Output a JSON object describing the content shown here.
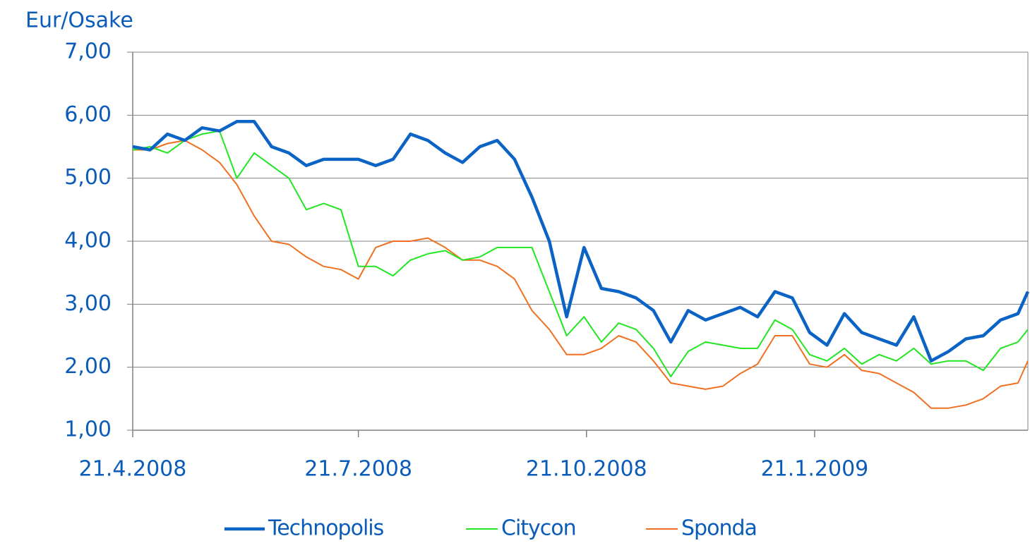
{
  "chart_data": {
    "type": "line",
    "y_axis_label": "Eur/Osake",
    "x": [
      "2008-04-21",
      "2008-04-28",
      "2008-05-05",
      "2008-05-12",
      "2008-05-19",
      "2008-05-26",
      "2008-06-02",
      "2008-06-09",
      "2008-06-16",
      "2008-06-23",
      "2008-06-30",
      "2008-07-07",
      "2008-07-14",
      "2008-07-21",
      "2008-07-28",
      "2008-08-04",
      "2008-08-11",
      "2008-08-18",
      "2008-08-25",
      "2008-09-01",
      "2008-09-08",
      "2008-09-15",
      "2008-09-22",
      "2008-09-29",
      "2008-10-06",
      "2008-10-13",
      "2008-10-20",
      "2008-10-27",
      "2008-11-03",
      "2008-11-10",
      "2008-11-17",
      "2008-11-24",
      "2008-12-01",
      "2008-12-08",
      "2008-12-15",
      "2008-12-22",
      "2008-12-29",
      "2009-01-05",
      "2009-01-12",
      "2009-01-19",
      "2009-01-26",
      "2009-02-02",
      "2009-02-09",
      "2009-02-16",
      "2009-02-23",
      "2009-03-02",
      "2009-03-09",
      "2009-03-16",
      "2009-03-23",
      "2009-03-30",
      "2009-04-06",
      "2009-04-13",
      "2009-04-17"
    ],
    "series": [
      {
        "name": "Technopolis",
        "color": "#0b63c5",
        "values": [
          5.5,
          5.45,
          5.7,
          5.6,
          5.8,
          5.75,
          5.9,
          5.9,
          5.5,
          5.4,
          5.2,
          5.3,
          5.3,
          5.3,
          5.2,
          5.3,
          5.7,
          5.6,
          5.4,
          5.25,
          5.5,
          5.6,
          5.3,
          4.7,
          4.0,
          2.8,
          3.9,
          3.25,
          3.2,
          3.1,
          2.9,
          2.4,
          2.9,
          2.75,
          2.85,
          2.95,
          2.8,
          3.2,
          3.1,
          2.55,
          2.35,
          2.85,
          2.55,
          2.45,
          2.35,
          2.8,
          2.1,
          2.25,
          2.45,
          2.5,
          2.75,
          2.85,
          3.2
        ]
      },
      {
        "name": "Citycon",
        "color": "#22e622",
        "values": [
          5.45,
          5.5,
          5.4,
          5.6,
          5.7,
          5.75,
          5.0,
          5.4,
          5.2,
          5.0,
          4.5,
          4.6,
          4.5,
          3.6,
          3.6,
          3.45,
          3.7,
          3.8,
          3.85,
          3.7,
          3.75,
          3.9,
          3.9,
          3.9,
          3.2,
          2.5,
          2.8,
          2.4,
          2.7,
          2.6,
          2.3,
          1.85,
          2.25,
          2.4,
          2.35,
          2.3,
          2.3,
          2.75,
          2.6,
          2.2,
          2.1,
          2.3,
          2.05,
          2.2,
          2.1,
          2.3,
          2.05,
          2.1,
          2.1,
          1.95,
          2.3,
          2.4,
          2.6
        ]
      },
      {
        "name": "Sponda",
        "color": "#f07020",
        "values": [
          5.45,
          5.45,
          5.55,
          5.6,
          5.45,
          5.25,
          4.9,
          4.4,
          4.0,
          3.95,
          3.75,
          3.6,
          3.55,
          3.4,
          3.9,
          4.0,
          4.0,
          4.05,
          3.9,
          3.7,
          3.7,
          3.6,
          3.4,
          2.9,
          2.6,
          2.2,
          2.2,
          2.3,
          2.5,
          2.4,
          2.1,
          1.75,
          1.7,
          1.65,
          1.7,
          1.9,
          2.05,
          2.5,
          2.5,
          2.05,
          2.0,
          2.2,
          1.95,
          1.9,
          1.75,
          1.6,
          1.35,
          1.35,
          1.4,
          1.5,
          1.7,
          1.75,
          2.1
        ]
      }
    ],
    "xlim": [
      "2008-04-21",
      "2009-04-17"
    ],
    "xticks": [
      {
        "value": "2008-04-21",
        "label": "21.4.2008"
      },
      {
        "value": "2008-07-21",
        "label": "21.7.2008"
      },
      {
        "value": "2008-10-21",
        "label": "21.10.2008"
      },
      {
        "value": "2009-01-21",
        "label": "21.1.2009"
      }
    ],
    "ylim": [
      1,
      7
    ],
    "yticks": [
      {
        "value": 1,
        "label": "1,00"
      },
      {
        "value": 2,
        "label": "2,00"
      },
      {
        "value": 3,
        "label": "3,00"
      },
      {
        "value": 4,
        "label": "4,00"
      },
      {
        "value": 5,
        "label": "5,00"
      },
      {
        "value": 6,
        "label": "6,00"
      },
      {
        "value": 7,
        "label": "7,00"
      }
    ],
    "grid": true,
    "legend": "bottom"
  }
}
